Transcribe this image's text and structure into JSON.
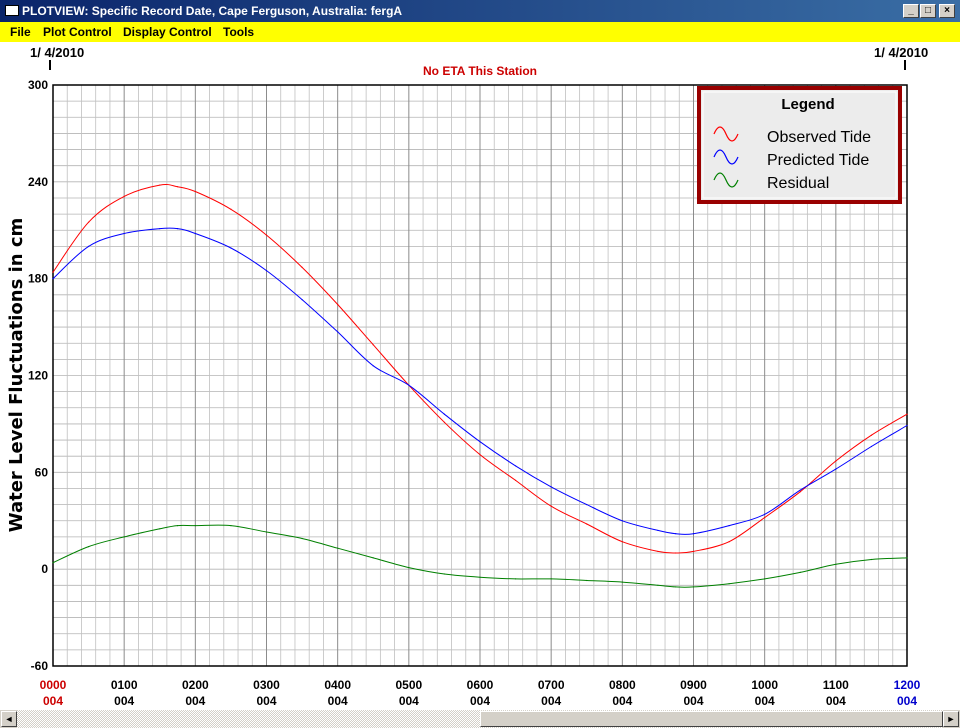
{
  "window": {
    "title": "PLOTVIEW: Specific Record Date, Cape Ferguson, Australia: fergA",
    "minimize": "_",
    "maximize": "□",
    "close": "×"
  },
  "menu": {
    "items": [
      "File",
      "Plot Control",
      "Display Control",
      "Tools"
    ]
  },
  "plot": {
    "date_left": "1/ 4/2010",
    "date_right": "1/ 4/2010",
    "status": "No ETA This Station"
  },
  "colors": {
    "observed": "#ff0000",
    "predicted": "#0000ff",
    "residual": "#008000",
    "status": "#cc0000",
    "legend_border": "#990000",
    "legend_bg": "#ececec",
    "grid": "#a8a8a8",
    "first_tick": "#cc0000",
    "last_tick": "#0000cc"
  },
  "scrollbar": {
    "left_arrow": "◄",
    "right_arrow": "►"
  },
  "chart_data": {
    "type": "line",
    "title": "",
    "ylabel": "Water Level Fluctuations in cm",
    "xlabel": "",
    "ylim": [
      -60,
      300
    ],
    "yticks": [
      -60,
      0,
      60,
      120,
      180,
      240
    ],
    "xlim": [
      0,
      12
    ],
    "xticks": [
      {
        "x": 0,
        "top": "0000",
        "bottom": "004"
      },
      {
        "x": 1,
        "top": "0100",
        "bottom": "004"
      },
      {
        "x": 2,
        "top": "0200",
        "bottom": "004"
      },
      {
        "x": 3,
        "top": "0300",
        "bottom": "004"
      },
      {
        "x": 4,
        "top": "0400",
        "bottom": "004"
      },
      {
        "x": 5,
        "top": "0500",
        "bottom": "004"
      },
      {
        "x": 6,
        "top": "0600",
        "bottom": "004"
      },
      {
        "x": 7,
        "top": "0700",
        "bottom": "004"
      },
      {
        "x": 8,
        "top": "0800",
        "bottom": "004"
      },
      {
        "x": 9,
        "top": "0900",
        "bottom": "004"
      },
      {
        "x": 10,
        "top": "1000",
        "bottom": "004"
      },
      {
        "x": 11,
        "top": "1100",
        "bottom": "004"
      },
      {
        "x": 12,
        "top": "1200",
        "bottom": "004"
      }
    ],
    "y_top_label": "300",
    "grid": true,
    "legend": {
      "title": "Legend",
      "placement": "top-right"
    },
    "x": [
      0,
      0.5,
      1,
      1.5,
      1.75,
      2,
      2.5,
      3,
      3.5,
      4,
      4.5,
      5,
      5.5,
      6,
      6.5,
      7,
      7.5,
      8,
      8.5,
      8.75,
      9,
      9.5,
      10,
      10.5,
      11,
      11.5,
      12
    ],
    "series": [
      {
        "name": "Observed Tide",
        "color": "#ff0000",
        "values": [
          184,
          215,
          231,
          238,
          237,
          234,
          223,
          207,
          187,
          164,
          139,
          114,
          91,
          71,
          55,
          39,
          28,
          17,
          11,
          10,
          11,
          17,
          32,
          48,
          67,
          83,
          96
        ]
      },
      {
        "name": "Predicted Tide",
        "color": "#0000ff",
        "values": [
          180,
          200,
          208,
          211,
          211,
          208,
          199,
          185,
          167,
          147,
          126,
          114,
          96,
          79,
          64,
          51,
          40,
          30,
          24,
          22,
          22,
          27,
          34,
          49,
          62,
          76,
          89
        ]
      },
      {
        "name": "Residual",
        "color": "#008000",
        "values": [
          4,
          14,
          20,
          25,
          27,
          27,
          27,
          23,
          19,
          13,
          7,
          1,
          -3,
          -5,
          -6,
          -6,
          -7,
          -8,
          -10,
          -11,
          -11,
          -9,
          -6,
          -2,
          3,
          6,
          7
        ]
      }
    ]
  }
}
